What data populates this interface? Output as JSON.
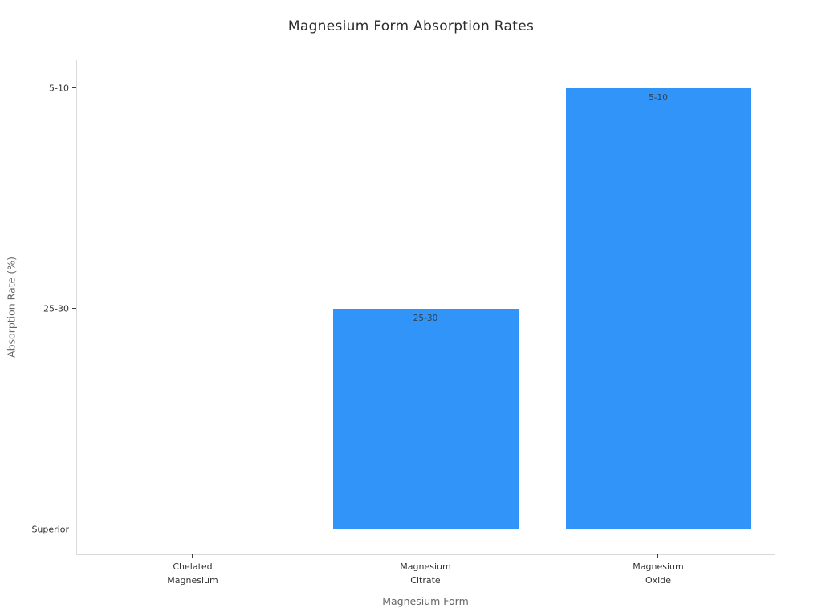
{
  "chart_data": {
    "type": "bar",
    "title": "Magnesium Form Absorption Rates",
    "xlabel": "Magnesium Form",
    "ylabel": "Absorption Rate (%)",
    "categories": [
      "Chelated Magnesium",
      "Magnesium Citrate",
      "Magnesium Oxide"
    ],
    "categories_lines": [
      [
        "Chelated",
        "Magnesium"
      ],
      [
        "Magnesium",
        "Citrate"
      ],
      [
        "Magnesium",
        "Oxide"
      ]
    ],
    "values": [
      "Superior",
      "25-30",
      "5-10"
    ],
    "y_ticks": [
      "Superior",
      "25-30",
      "5-10"
    ],
    "level_index": [
      0,
      1,
      2
    ],
    "bar_labels": [
      "",
      "25-30",
      "5-10"
    ],
    "bar_color": "#3094f8",
    "legend_position": "none",
    "grid": false,
    "axis_type": "categorical-y"
  }
}
